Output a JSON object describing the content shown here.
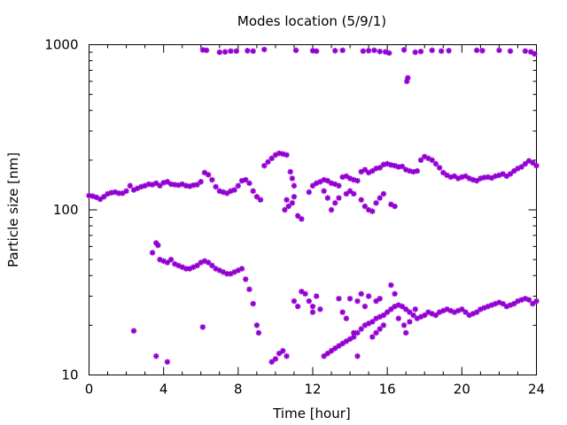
{
  "chart_data": {
    "type": "scatter",
    "title": "Modes location (5/9/1)",
    "xlabel": "Time [hour]",
    "ylabel": "Particle size [nm]",
    "xlim": [
      0,
      24
    ],
    "ylim": [
      10,
      1000
    ],
    "yscale": "log",
    "x_ticks": [
      0,
      4,
      8,
      12,
      16,
      20,
      24
    ],
    "x_tick_labels": [
      "0",
      "4",
      "8",
      "12",
      "16",
      "20",
      "24"
    ],
    "y_ticks": [
      10,
      100,
      1000
    ],
    "y_tick_labels": [
      "10",
      "100",
      "1000"
    ],
    "grid": false,
    "marker_color": "#9400d3",
    "series": [
      {
        "points": [
          [
            6.1,
            930
          ],
          [
            6.3,
            925
          ],
          [
            7.0,
            900
          ],
          [
            7.3,
            905
          ],
          [
            7.6,
            915
          ],
          [
            7.9,
            915
          ],
          [
            8.5,
            920
          ],
          [
            8.8,
            915
          ],
          [
            9.4,
            935
          ],
          [
            11.1,
            925
          ],
          [
            12.0,
            920
          ],
          [
            12.2,
            915
          ],
          [
            13.2,
            920
          ],
          [
            13.6,
            925
          ],
          [
            14.7,
            915
          ],
          [
            15.0,
            920
          ],
          [
            15.3,
            925
          ],
          [
            15.6,
            910
          ],
          [
            15.9,
            905
          ],
          [
            16.1,
            890
          ],
          [
            16.9,
            930
          ],
          [
            17.5,
            900
          ],
          [
            17.8,
            910
          ],
          [
            18.4,
            925
          ],
          [
            18.9,
            915
          ],
          [
            19.3,
            920
          ],
          [
            20.8,
            925
          ],
          [
            21.1,
            920
          ],
          [
            22.0,
            925
          ],
          [
            22.6,
            915
          ],
          [
            23.4,
            915
          ],
          [
            23.7,
            905
          ],
          [
            23.9,
            880
          ],
          [
            17.1,
            630
          ],
          [
            17.05,
            600
          ]
        ]
      },
      {
        "points": [
          [
            0.0,
            122
          ],
          [
            0.2,
            121
          ],
          [
            0.4,
            119
          ],
          [
            0.6,
            116
          ],
          [
            0.8,
            120
          ],
          [
            1.0,
            125
          ],
          [
            1.2,
            127
          ],
          [
            1.4,
            128
          ],
          [
            1.6,
            126
          ],
          [
            1.8,
            126
          ],
          [
            2.0,
            130
          ],
          [
            2.2,
            140
          ],
          [
            2.4,
            132
          ],
          [
            2.6,
            135
          ],
          [
            2.8,
            138
          ],
          [
            3.0,
            140
          ],
          [
            3.2,
            143
          ],
          [
            3.4,
            142
          ],
          [
            3.6,
            145
          ],
          [
            3.8,
            140
          ],
          [
            4.0,
            146
          ],
          [
            4.2,
            148
          ],
          [
            4.4,
            143
          ],
          [
            4.6,
            142
          ],
          [
            4.8,
            141
          ],
          [
            5.0,
            143
          ],
          [
            5.2,
            140
          ],
          [
            5.4,
            139
          ],
          [
            5.6,
            141
          ],
          [
            5.8,
            142
          ],
          [
            6.0,
            148
          ],
          [
            6.2,
            168
          ],
          [
            6.4,
            163
          ],
          [
            6.6,
            152
          ],
          [
            6.8,
            138
          ],
          [
            7.0,
            130
          ],
          [
            7.2,
            128
          ],
          [
            7.4,
            126
          ],
          [
            7.6,
            130
          ],
          [
            7.8,
            132
          ],
          [
            8.0,
            140
          ],
          [
            8.2,
            150
          ],
          [
            8.4,
            152
          ],
          [
            8.6,
            145
          ],
          [
            8.8,
            130
          ],
          [
            9.0,
            120
          ],
          [
            9.2,
            115
          ],
          [
            9.4,
            185
          ],
          [
            9.6,
            195
          ],
          [
            9.8,
            205
          ],
          [
            10.0,
            215
          ],
          [
            10.2,
            220
          ],
          [
            10.4,
            218
          ],
          [
            10.6,
            215
          ],
          [
            10.8,
            170
          ],
          [
            11.0,
            140
          ],
          [
            10.9,
            155
          ],
          [
            11.0,
            120
          ],
          [
            10.9,
            110
          ],
          [
            10.7,
            105
          ],
          [
            10.5,
            100
          ],
          [
            10.6,
            115
          ],
          [
            11.2,
            92
          ],
          [
            11.4,
            88
          ],
          [
            11.8,
            128
          ],
          [
            12.0,
            140
          ],
          [
            12.2,
            145
          ],
          [
            12.4,
            148
          ],
          [
            12.6,
            152
          ],
          [
            12.8,
            150
          ],
          [
            13.0,
            145
          ],
          [
            13.2,
            143
          ],
          [
            13.4,
            140
          ],
          [
            13.6,
            158
          ],
          [
            13.8,
            160
          ],
          [
            14.0,
            155
          ],
          [
            14.2,
            152
          ],
          [
            14.4,
            150
          ],
          [
            14.6,
            170
          ],
          [
            14.8,
            175
          ],
          [
            15.0,
            168
          ],
          [
            15.2,
            172
          ],
          [
            15.4,
            178
          ],
          [
            15.6,
            180
          ],
          [
            15.8,
            188
          ],
          [
            16.0,
            190
          ],
          [
            16.2,
            187
          ],
          [
            16.4,
            185
          ],
          [
            16.6,
            182
          ],
          [
            16.8,
            183
          ],
          [
            17.0,
            175
          ],
          [
            17.2,
            172
          ],
          [
            17.4,
            170
          ],
          [
            17.6,
            172
          ],
          [
            17.8,
            200
          ],
          [
            18.0,
            210
          ],
          [
            18.2,
            205
          ],
          [
            18.4,
            200
          ],
          [
            18.6,
            190
          ],
          [
            18.8,
            180
          ],
          [
            19.0,
            168
          ],
          [
            19.2,
            162
          ],
          [
            19.4,
            158
          ],
          [
            19.6,
            160
          ],
          [
            19.8,
            155
          ],
          [
            20.0,
            158
          ],
          [
            20.2,
            160
          ],
          [
            20.4,
            155
          ],
          [
            20.6,
            152
          ],
          [
            20.8,
            150
          ],
          [
            21.0,
            155
          ],
          [
            21.2,
            157
          ],
          [
            21.4,
            158
          ],
          [
            21.6,
            156
          ],
          [
            21.8,
            160
          ],
          [
            22.0,
            162
          ],
          [
            22.2,
            165
          ],
          [
            22.4,
            160
          ],
          [
            22.6,
            165
          ],
          [
            22.8,
            172
          ],
          [
            23.0,
            178
          ],
          [
            23.2,
            182
          ],
          [
            23.4,
            190
          ],
          [
            23.6,
            198
          ],
          [
            23.8,
            193
          ],
          [
            24.0,
            185
          ],
          [
            14.2,
            125
          ],
          [
            14.6,
            115
          ],
          [
            14.8,
            105
          ],
          [
            15.0,
            100
          ],
          [
            15.2,
            98
          ],
          [
            15.4,
            110
          ],
          [
            15.6,
            118
          ],
          [
            15.8,
            125
          ],
          [
            16.2,
            108
          ],
          [
            16.4,
            105
          ],
          [
            13.2,
            110
          ],
          [
            13.4,
            118
          ],
          [
            12.8,
            118
          ],
          [
            12.6,
            130
          ],
          [
            13.0,
            100
          ],
          [
            14.0,
            130
          ],
          [
            13.8,
            125
          ]
        ]
      },
      {
        "points": [
          [
            3.4,
            55
          ],
          [
            3.6,
            63
          ],
          [
            3.7,
            61
          ],
          [
            3.8,
            50
          ],
          [
            4.0,
            49
          ],
          [
            4.2,
            48
          ],
          [
            4.4,
            50
          ],
          [
            4.6,
            47
          ],
          [
            4.8,
            46
          ],
          [
            5.0,
            45
          ],
          [
            5.2,
            44
          ],
          [
            5.4,
            44
          ],
          [
            5.6,
            45
          ],
          [
            5.8,
            46
          ],
          [
            6.0,
            48
          ],
          [
            6.2,
            49
          ],
          [
            6.4,
            48
          ],
          [
            6.6,
            46
          ],
          [
            6.8,
            44
          ],
          [
            7.0,
            43
          ],
          [
            7.2,
            42
          ],
          [
            7.4,
            41
          ],
          [
            7.6,
            41
          ],
          [
            7.8,
            42
          ],
          [
            8.0,
            43
          ],
          [
            8.2,
            44
          ],
          [
            8.4,
            38
          ],
          [
            8.6,
            33
          ],
          [
            8.8,
            27
          ],
          [
            9.0,
            20
          ],
          [
            9.1,
            18
          ],
          [
            9.8,
            12
          ],
          [
            10.0,
            12.5
          ],
          [
            10.2,
            13.5
          ],
          [
            10.4,
            14
          ],
          [
            10.6,
            13
          ],
          [
            11.0,
            28
          ],
          [
            11.2,
            26
          ],
          [
            11.4,
            32
          ],
          [
            11.6,
            31
          ],
          [
            11.8,
            28
          ],
          [
            12.0,
            26
          ],
          [
            12.2,
            30
          ],
          [
            12.4,
            25
          ],
          [
            12.0,
            24
          ],
          [
            12.6,
            13
          ],
          [
            12.8,
            13.5
          ],
          [
            13.0,
            14
          ],
          [
            13.2,
            14.5
          ],
          [
            13.4,
            15
          ],
          [
            13.6,
            15.5
          ],
          [
            13.8,
            16
          ],
          [
            14.0,
            16.5
          ],
          [
            14.2,
            17
          ],
          [
            14.4,
            18
          ],
          [
            14.6,
            19
          ],
          [
            14.8,
            20
          ],
          [
            15.0,
            20.5
          ],
          [
            15.2,
            21
          ],
          [
            15.4,
            22
          ],
          [
            15.6,
            22.5
          ],
          [
            15.8,
            23
          ],
          [
            16.0,
            24
          ],
          [
            16.2,
            25
          ],
          [
            16.4,
            26
          ],
          [
            16.6,
            26.5
          ],
          [
            16.8,
            26
          ],
          [
            17.0,
            25
          ],
          [
            17.2,
            24
          ],
          [
            17.4,
            23
          ],
          [
            17.6,
            22
          ],
          [
            17.8,
            22.5
          ],
          [
            18.0,
            23
          ],
          [
            18.2,
            24
          ],
          [
            18.4,
            23.5
          ],
          [
            18.6,
            23
          ],
          [
            18.8,
            24
          ],
          [
            19.0,
            24.5
          ],
          [
            19.2,
            25
          ],
          [
            19.4,
            24.5
          ],
          [
            19.6,
            24
          ],
          [
            19.8,
            24.5
          ],
          [
            20.0,
            25
          ],
          [
            20.2,
            24
          ],
          [
            20.4,
            23
          ],
          [
            20.6,
            23.5
          ],
          [
            20.8,
            24
          ],
          [
            21.0,
            25
          ],
          [
            21.2,
            25.5
          ],
          [
            21.4,
            26
          ],
          [
            21.6,
            26.5
          ],
          [
            21.8,
            27
          ],
          [
            22.0,
            27.5
          ],
          [
            22.2,
            27
          ],
          [
            22.4,
            26
          ],
          [
            22.6,
            26.5
          ],
          [
            22.8,
            27
          ],
          [
            23.0,
            28
          ],
          [
            23.2,
            28.5
          ],
          [
            23.4,
            29
          ],
          [
            23.6,
            28.5
          ],
          [
            23.8,
            27
          ],
          [
            24.0,
            28
          ],
          [
            14.0,
            29
          ],
          [
            14.4,
            28
          ],
          [
            14.6,
            31
          ],
          [
            15.0,
            30
          ],
          [
            14.8,
            26
          ],
          [
            15.4,
            28
          ],
          [
            15.6,
            29
          ],
          [
            16.4,
            31
          ],
          [
            16.2,
            35
          ],
          [
            16.6,
            22
          ],
          [
            16.9,
            20
          ],
          [
            17.0,
            18
          ],
          [
            17.2,
            21
          ],
          [
            17.5,
            25
          ],
          [
            13.4,
            29
          ],
          [
            13.6,
            24
          ],
          [
            13.8,
            22
          ],
          [
            14.2,
            18
          ],
          [
            14.4,
            13
          ],
          [
            15.2,
            17
          ],
          [
            15.4,
            18
          ],
          [
            15.6,
            19
          ],
          [
            15.8,
            20
          ],
          [
            2.4,
            18.5
          ],
          [
            3.6,
            13
          ],
          [
            4.2,
            12
          ],
          [
            6.1,
            19.5
          ]
        ]
      }
    ]
  }
}
